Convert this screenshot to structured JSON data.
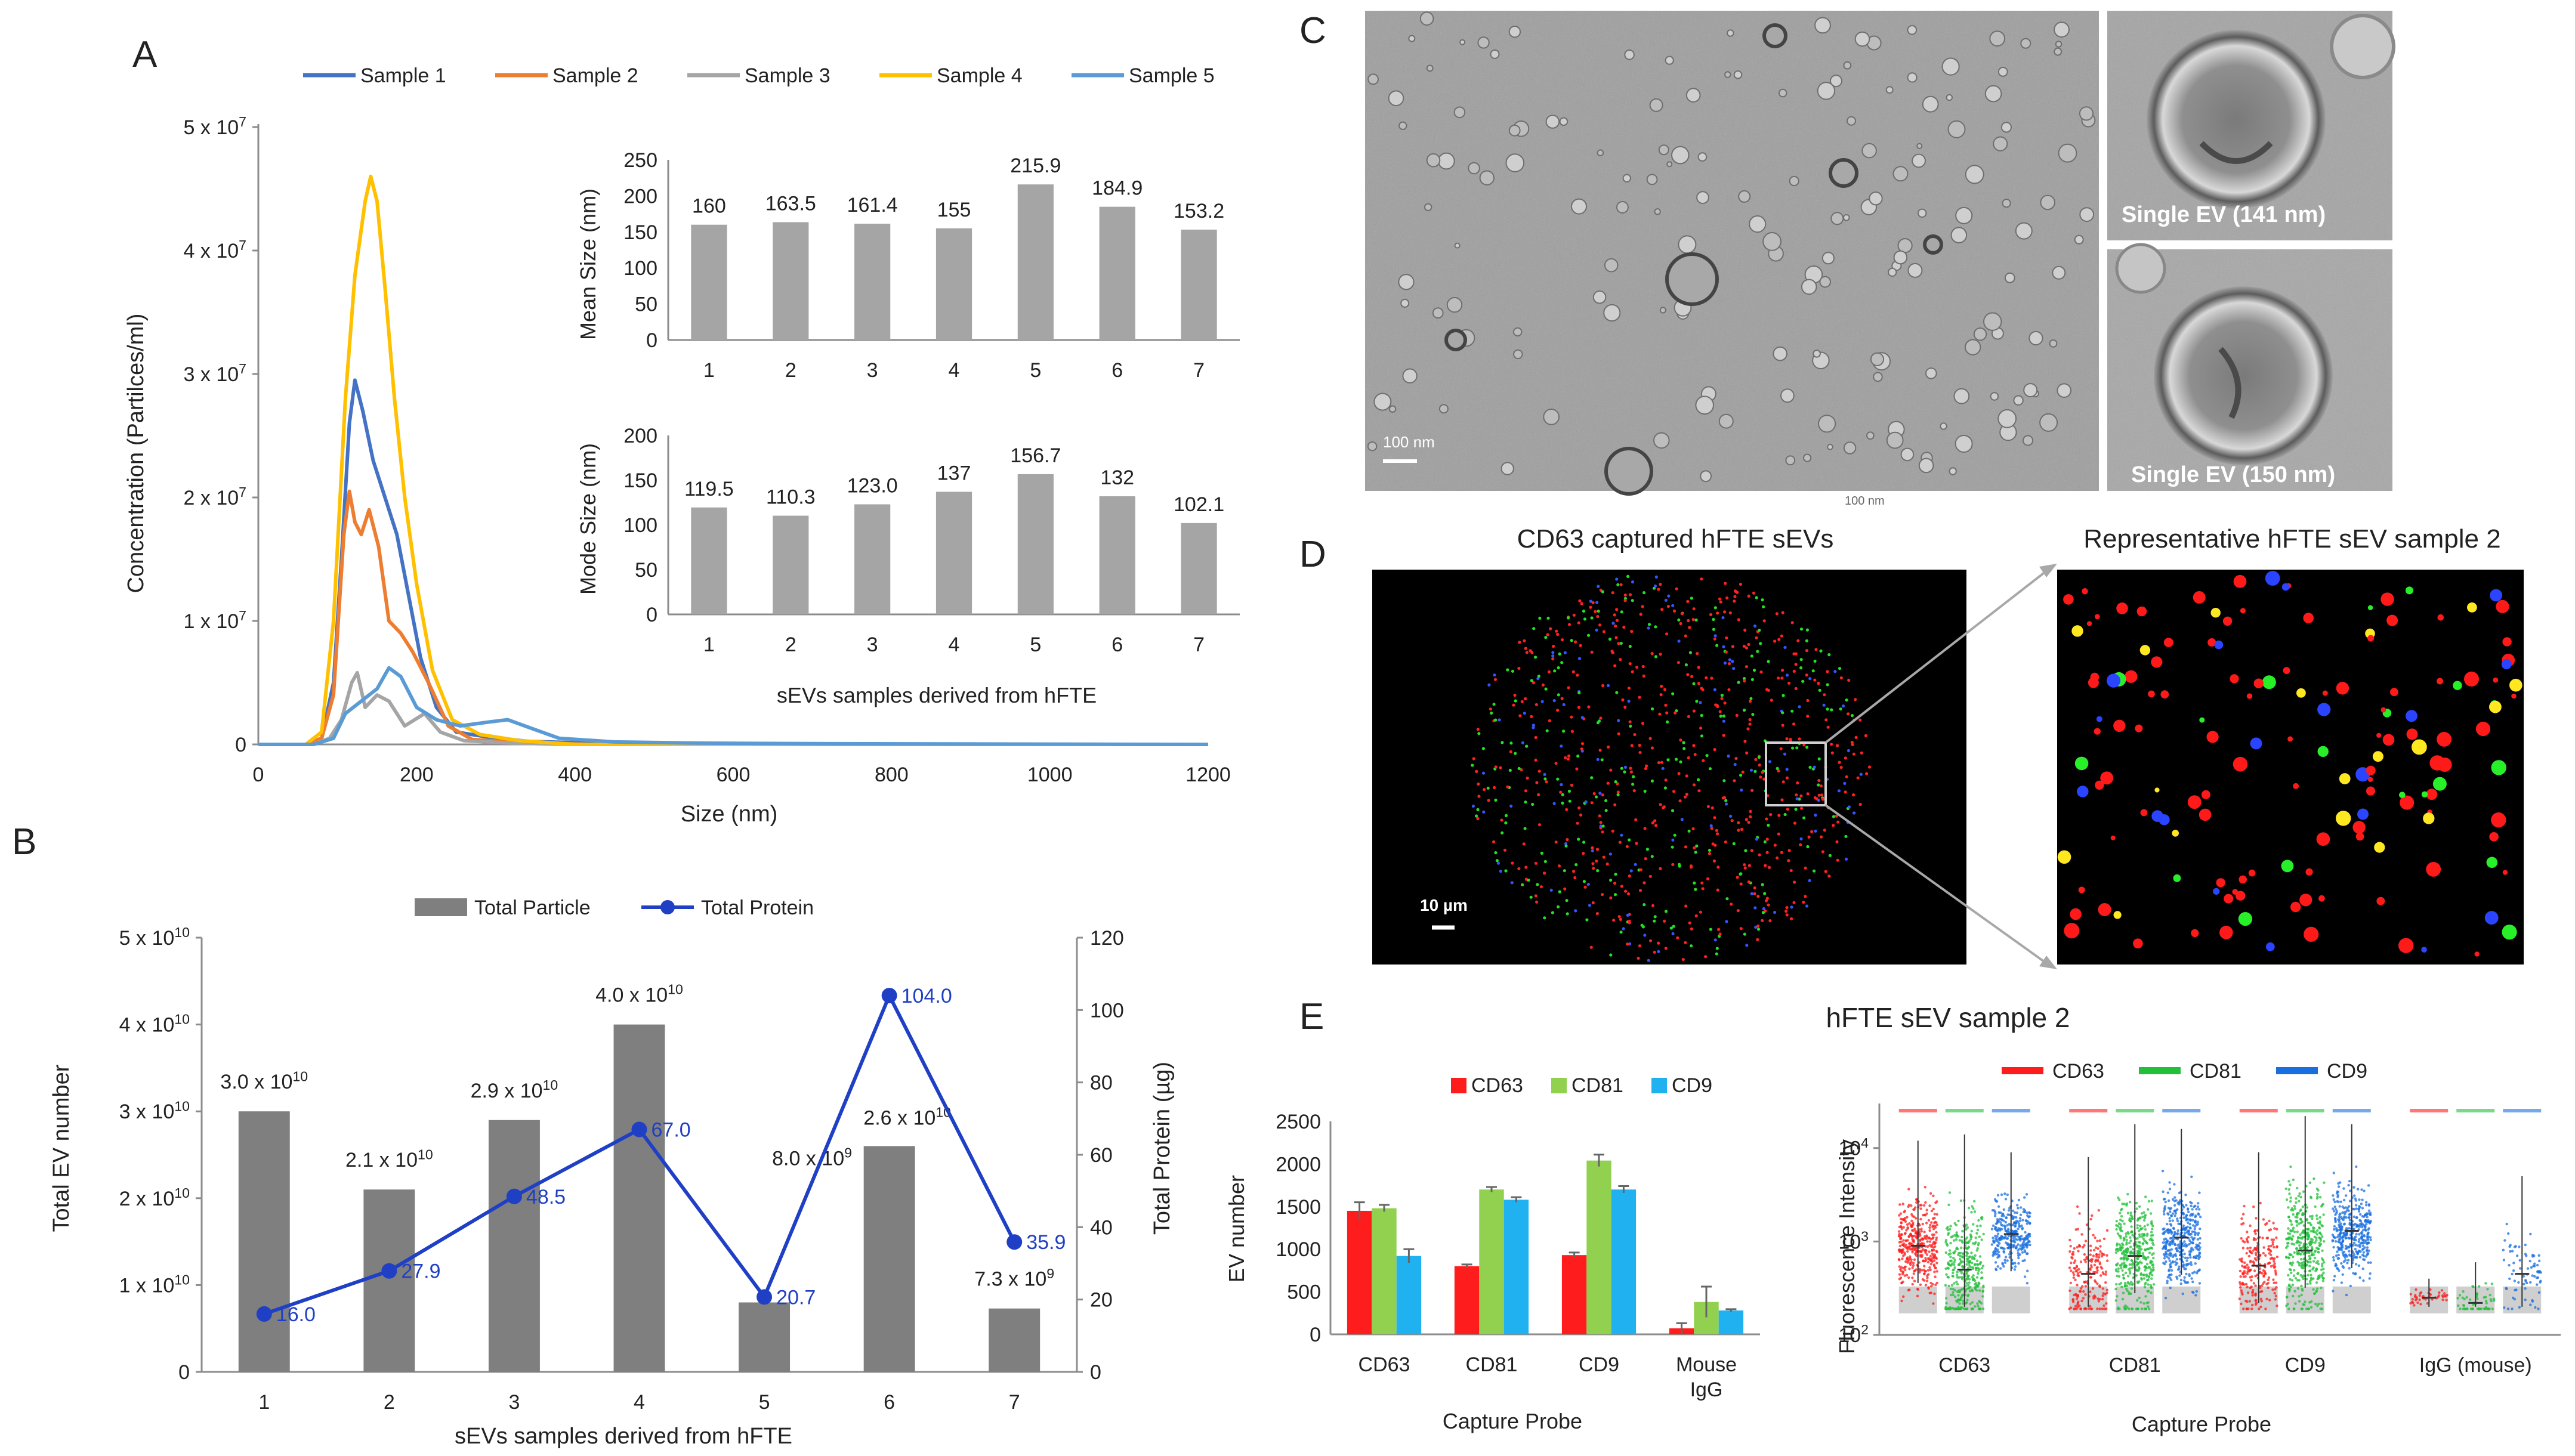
{
  "panels": {
    "a": "A",
    "b": "B",
    "c": "C",
    "d": "D",
    "e": "E"
  },
  "colors": {
    "bar_gray": "#a5a5a5",
    "bar_dark": "#7f7f7f",
    "protein_blue": "#1f3fc4",
    "s1": "#4472c4",
    "s2": "#ed7d31",
    "s3": "#a5a5a5",
    "s4": "#ffc000",
    "s5": "#5b9bd5",
    "cd63": "#ff1c1c",
    "cd81": "#92d050",
    "cd9": "#1fb1f0"
  },
  "chart_data": [
    {
      "id": "A-nta",
      "type": "line",
      "xlabel": "Size (nm)",
      "ylabel": "Concentration (Partilces/ml)",
      "xlim": [
        0,
        1200
      ],
      "ylim": [
        0,
        50000000
      ],
      "x_ticks": [
        "0",
        "200",
        "400",
        "600",
        "800",
        "1000",
        "1200"
      ],
      "y_ticks": [
        {
          "m": "0",
          "e": ""
        },
        {
          "m": "1 x 10",
          "e": "7"
        },
        {
          "m": "2 x 10",
          "e": "7"
        },
        {
          "m": "3 x 10",
          "e": "7"
        },
        {
          "m": "4 x 10",
          "e": "7"
        },
        {
          "m": "5 x 10",
          "e": "7"
        }
      ],
      "series": [
        {
          "name": "Sample 1",
          "color": "#4472c4",
          "points": [
            [
              0,
              0
            ],
            [
              60,
              0
            ],
            [
              80,
              500000
            ],
            [
              95,
              5000000
            ],
            [
              105,
              15000000
            ],
            [
              115,
              26000000
            ],
            [
              122,
              29500000
            ],
            [
              132,
              27000000
            ],
            [
              145,
              23000000
            ],
            [
              160,
              20000000
            ],
            [
              175,
              17000000
            ],
            [
              190,
              12000000
            ],
            [
              205,
              7000000
            ],
            [
              225,
              3000000
            ],
            [
              250,
              1000000
            ],
            [
              290,
              600000
            ],
            [
              340,
              250000
            ],
            [
              420,
              100000
            ],
            [
              520,
              0
            ],
            [
              1200,
              0
            ]
          ]
        },
        {
          "name": "Sample 2",
          "color": "#ed7d31",
          "points": [
            [
              0,
              0
            ],
            [
              60,
              0
            ],
            [
              80,
              500000
            ],
            [
              95,
              4000000
            ],
            [
              108,
              17000000
            ],
            [
              115,
              20500000
            ],
            [
              122,
              18000000
            ],
            [
              130,
              17000000
            ],
            [
              140,
              19000000
            ],
            [
              152,
              16000000
            ],
            [
              165,
              10000000
            ],
            [
              180,
              9000000
            ],
            [
              195,
              7500000
            ],
            [
              215,
              5000000
            ],
            [
              240,
              1500000
            ],
            [
              270,
              400000
            ],
            [
              330,
              150000
            ],
            [
              420,
              0
            ],
            [
              1200,
              0
            ]
          ]
        },
        {
          "name": "Sample 3",
          "color": "#a5a5a5",
          "points": [
            [
              0,
              0
            ],
            [
              70,
              0
            ],
            [
              90,
              500000
            ],
            [
              105,
              2000000
            ],
            [
              118,
              5000000
            ],
            [
              125,
              5800000
            ],
            [
              135,
              3000000
            ],
            [
              150,
              4000000
            ],
            [
              165,
              3500000
            ],
            [
              185,
              1500000
            ],
            [
              210,
              2500000
            ],
            [
              230,
              1000000
            ],
            [
              260,
              300000
            ],
            [
              320,
              100000
            ],
            [
              400,
              0
            ],
            [
              1200,
              0
            ]
          ]
        },
        {
          "name": "Sample 4",
          "color": "#ffc000",
          "points": [
            [
              0,
              0
            ],
            [
              60,
              0
            ],
            [
              80,
              1000000
            ],
            [
              95,
              10000000
            ],
            [
              110,
              28000000
            ],
            [
              122,
              38000000
            ],
            [
              135,
              44000000
            ],
            [
              142,
              46000000
            ],
            [
              150,
              44000000
            ],
            [
              160,
              37000000
            ],
            [
              172,
              28000000
            ],
            [
              185,
              20000000
            ],
            [
              200,
              13000000
            ],
            [
              220,
              6000000
            ],
            [
              245,
              2000000
            ],
            [
              280,
              800000
            ],
            [
              330,
              300000
            ],
            [
              400,
              0
            ],
            [
              1200,
              0
            ]
          ]
        },
        {
          "name": "Sample 5",
          "color": "#5b9bd5",
          "points": [
            [
              0,
              0
            ],
            [
              70,
              0
            ],
            [
              95,
              500000
            ],
            [
              110,
              2500000
            ],
            [
              130,
              3500000
            ],
            [
              150,
              4500000
            ],
            [
              165,
              6200000
            ],
            [
              180,
              5500000
            ],
            [
              200,
              3000000
            ],
            [
              225,
              2000000
            ],
            [
              255,
              1500000
            ],
            [
              290,
              1800000
            ],
            [
              315,
              2000000
            ],
            [
              345,
              1300000
            ],
            [
              380,
              500000
            ],
            [
              450,
              200000
            ],
            [
              560,
              100000
            ],
            [
              700,
              60000
            ],
            [
              1000,
              20000
            ],
            [
              1200,
              0
            ]
          ]
        }
      ]
    },
    {
      "id": "A-inset-mean",
      "type": "bar",
      "ylabel": "Mean Size (nm)",
      "categories": [
        "1",
        "2",
        "3",
        "4",
        "5",
        "6",
        "7"
      ],
      "values": [
        160,
        163.5,
        161.4,
        155,
        215.9,
        184.9,
        153.2
      ],
      "labels": [
        "160",
        "163.5",
        "161.4",
        "155",
        "215.9",
        "184.9",
        "153.2"
      ],
      "ylim": [
        0,
        250
      ],
      "y_ticks": [
        "0",
        "50",
        "100",
        "150",
        "200",
        "250"
      ]
    },
    {
      "id": "A-inset-mode",
      "type": "bar",
      "ylabel": "Mode Size (nm)",
      "xlabel": "sEVs samples derived from hFTE",
      "categories": [
        "1",
        "2",
        "3",
        "4",
        "5",
        "6",
        "7"
      ],
      "values": [
        119.5,
        110.3,
        123.0,
        137,
        156.7,
        132,
        102.1
      ],
      "labels": [
        "119.5",
        "110.3",
        "123.0",
        "137",
        "156.7",
        "132",
        "102.1"
      ],
      "ylim": [
        0,
        200
      ],
      "y_ticks": [
        "0",
        "50",
        "100",
        "150",
        "200"
      ]
    },
    {
      "id": "B-particles-protein",
      "type": "bar",
      "xlabel": "sEVs samples derived from hFTE",
      "ylabel": "Total EV number",
      "y2label": "Total Protein (µg)",
      "legend": [
        "Total Particle",
        "Total Protein"
      ],
      "categories": [
        "1",
        "2",
        "3",
        "4",
        "5",
        "6",
        "7"
      ],
      "particles": [
        30000000000,
        21000000000,
        29000000000,
        40000000000,
        8000000000,
        26000000000,
        7300000000
      ],
      "particle_labels": [
        {
          "m": "3.0 x 10",
          "e": "10"
        },
        {
          "m": "2.1 x 10",
          "e": "10"
        },
        {
          "m": "2.9 x 10",
          "e": "10"
        },
        {
          "m": "4.0 x 10",
          "e": "10"
        },
        {
          "m": "8.0 x 10",
          "e": "9"
        },
        {
          "m": "2.6 x 10",
          "e": "10"
        },
        {
          "m": "7.3 x 10",
          "e": "9"
        }
      ],
      "protein": [
        16.0,
        27.9,
        48.5,
        67.0,
        20.7,
        104.0,
        35.9
      ],
      "protein_labels": [
        "16.0",
        "27.9",
        "48.5",
        "67.0",
        "20.7",
        "104.0",
        "35.9"
      ],
      "ylim": [
        0,
        50000000000
      ],
      "y2lim": [
        0,
        120
      ],
      "y_ticks": [
        {
          "m": "0",
          "e": ""
        },
        {
          "m": "1 x 10",
          "e": "10"
        },
        {
          "m": "2 x 10",
          "e": "10"
        },
        {
          "m": "3 x 10",
          "e": "10"
        },
        {
          "m": "4 x 10",
          "e": "10"
        },
        {
          "m": "5 x 10",
          "e": "10"
        }
      ],
      "y2_ticks": [
        "0",
        "20",
        "40",
        "60",
        "80",
        "100",
        "120"
      ]
    },
    {
      "id": "E-ev-number",
      "type": "bar",
      "xlabel": "Capture Probe",
      "ylabel": "EV number",
      "categories": [
        "CD63",
        "CD81",
        "CD9",
        "Mouse IgG"
      ],
      "category_lines": [
        [
          "CD63"
        ],
        [
          "CD81"
        ],
        [
          "CD9"
        ],
        [
          "Mouse",
          "IgG"
        ]
      ],
      "series": [
        {
          "name": "CD63",
          "color": "#ff1c1c",
          "values": [
            1450,
            800,
            930,
            70
          ],
          "err": [
            100,
            20,
            30,
            60
          ]
        },
        {
          "name": "CD81",
          "color": "#92d050",
          "values": [
            1480,
            1700,
            2040,
            380
          ],
          "err": [
            40,
            30,
            70,
            180
          ]
        },
        {
          "name": "CD9",
          "color": "#1fb1f0",
          "values": [
            920,
            1580,
            1700,
            280
          ],
          "err": [
            80,
            30,
            40,
            15
          ]
        }
      ],
      "ylim": [
        0,
        2500
      ],
      "y_ticks": [
        "0",
        "500",
        "1000",
        "1500",
        "2000",
        "2500"
      ]
    },
    {
      "id": "E-fluorescence",
      "type": "scatter",
      "title": "hFTE sEV sample 2",
      "xlabel": "Capture Probe",
      "ylabel": "Fluorescence Intensity",
      "yscale": "log",
      "ylim": [
        100,
        30000
      ],
      "y_ticks": [
        {
          "m": "10",
          "e": "2"
        },
        {
          "m": "10",
          "e": "3"
        },
        {
          "m": "10",
          "e": "4"
        }
      ],
      "categories": [
        "CD63",
        "CD81",
        "CD9",
        "IgG (mouse)"
      ],
      "legend": [
        {
          "name": "CD63",
          "color": "#ff1c1c"
        },
        {
          "name": "CD81",
          "color": "#22c03a"
        },
        {
          "name": "CD9",
          "color": "#1a6fe0"
        }
      ],
      "groups": [
        {
          "cat": "CD63",
          "median": [
            900,
            500,
            1200
          ],
          "upper": [
            12000,
            14000,
            9000
          ],
          "density": [
            1.0,
            0.9,
            0.8
          ]
        },
        {
          "cat": "CD81",
          "median": [
            450,
            700,
            1100
          ],
          "upper": [
            8000,
            18000,
            16000
          ],
          "density": [
            0.5,
            1.0,
            1.0
          ]
        },
        {
          "cat": "CD9",
          "median": [
            550,
            800,
            1300
          ],
          "upper": [
            9000,
            22000,
            18000
          ],
          "density": [
            0.6,
            1.0,
            1.0
          ]
        },
        {
          "cat": "IgG (mouse)",
          "median": [
            250,
            220,
            450
          ],
          "upper": [
            400,
            600,
            5000
          ],
          "density": [
            0.12,
            0.15,
            0.2
          ]
        }
      ]
    }
  ],
  "panel_c": {
    "scale_main": "100 nm",
    "scale_small": "100 nm",
    "ev1_label": "Single EV (141 nm)",
    "ev2_label": "Single EV (150 nm)"
  },
  "panel_d": {
    "left_title": "CD63 captured hFTE sEVs",
    "right_title": "Representative hFTE sEV sample 2",
    "scale": "10 µm"
  }
}
